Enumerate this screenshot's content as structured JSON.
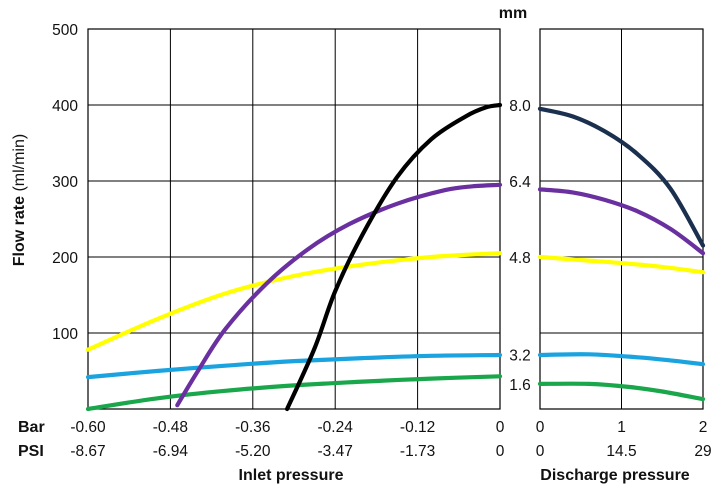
{
  "chart_data": {
    "type": "line",
    "ylabel_bold": "Flow rate",
    "ylabel_unit": " (ml/min)",
    "ylim": [
      0,
      500
    ],
    "yticks": [
      {
        "value": 500,
        "label": "500"
      },
      {
        "value": 400,
        "label": "400"
      },
      {
        "value": 300,
        "label": "300"
      },
      {
        "value": 200,
        "label": "200"
      },
      {
        "value": 100,
        "label": "100"
      }
    ],
    "grid": true,
    "inlet": {
      "title": "Inlet pressure",
      "xlim": [
        -0.6,
        0
      ],
      "gridlines": [
        -0.48,
        -0.36,
        -0.24,
        -0.12
      ],
      "row_labels": {
        "bar": "Bar",
        "psi": "PSI"
      },
      "ticks": [
        {
          "bar": -0.6,
          "bar_label": "-0.60",
          "psi_label": "-8.67"
        },
        {
          "bar": -0.48,
          "bar_label": "-0.48",
          "psi_label": "-6.94"
        },
        {
          "bar": -0.36,
          "bar_label": "-0.36",
          "psi_label": "-5.20"
        },
        {
          "bar": -0.24,
          "bar_label": "-0.24",
          "psi_label": "-3.47"
        },
        {
          "bar": -0.12,
          "bar_label": "-0.12",
          "psi_label": "-1.73"
        },
        {
          "bar": 0,
          "bar_label": "0",
          "psi_label": "0"
        }
      ]
    },
    "discharge": {
      "title": "Discharge pressure",
      "xlim": [
        0,
        2
      ],
      "gridlines": [
        1
      ],
      "ticks": [
        {
          "bar": 0,
          "bar_label": "0",
          "psi_label": "0"
        },
        {
          "bar": 1,
          "bar_label": "1",
          "psi_label": "14.5"
        },
        {
          "bar": 2,
          "bar_label": "2",
          "psi_label": "29"
        }
      ]
    },
    "size_unit": "mm",
    "series": [
      {
        "name": "8.0",
        "color": "#000000",
        "label_y": 400,
        "inlet": [
          [
            -0.31,
            0
          ],
          [
            -0.27,
            80
          ],
          [
            -0.24,
            155
          ],
          [
            -0.2,
            230
          ],
          [
            -0.15,
            305
          ],
          [
            -0.1,
            355
          ],
          [
            -0.05,
            385
          ],
          [
            -0.02,
            397
          ],
          [
            0,
            400
          ]
        ]
      },
      {
        "name": "8.0",
        "color": "#1b2f4f",
        "label_y": 400,
        "discharge": [
          [
            0,
            395
          ],
          [
            0.4,
            385
          ],
          [
            0.8,
            365
          ],
          [
            1.2,
            335
          ],
          [
            1.6,
            290
          ],
          [
            2,
            215
          ]
        ]
      },
      {
        "name": "6.4",
        "color": "#6a30a0",
        "label_y": 300,
        "inlet": [
          [
            -0.47,
            5
          ],
          [
            -0.44,
            50
          ],
          [
            -0.4,
            105
          ],
          [
            -0.34,
            165
          ],
          [
            -0.28,
            210
          ],
          [
            -0.22,
            243
          ],
          [
            -0.15,
            270
          ],
          [
            -0.08,
            288
          ],
          [
            -0.04,
            293
          ],
          [
            0,
            295
          ]
        ],
        "discharge": [
          [
            0,
            289
          ],
          [
            0.4,
            285
          ],
          [
            0.8,
            275
          ],
          [
            1.2,
            260
          ],
          [
            1.6,
            237
          ],
          [
            2,
            205
          ]
        ]
      },
      {
        "name": "4.8",
        "color": "#ffff00",
        "label_y": 200,
        "inlet": [
          [
            -0.6,
            78
          ],
          [
            -0.5,
            118
          ],
          [
            -0.4,
            152
          ],
          [
            -0.3,
            175
          ],
          [
            -0.2,
            190
          ],
          [
            -0.1,
            200
          ],
          [
            0,
            205
          ]
        ],
        "discharge": [
          [
            0,
            200
          ],
          [
            0.5,
            196
          ],
          [
            1,
            192
          ],
          [
            1.5,
            187
          ],
          [
            2,
            180
          ]
        ]
      },
      {
        "name": "3.2",
        "color": "#1aa3df",
        "label_y": 72,
        "inlet": [
          [
            -0.6,
            42
          ],
          [
            -0.5,
            50
          ],
          [
            -0.4,
            57
          ],
          [
            -0.3,
            63
          ],
          [
            -0.2,
            67
          ],
          [
            -0.1,
            70
          ],
          [
            0,
            71
          ]
        ],
        "discharge": [
          [
            0,
            71
          ],
          [
            0.6,
            72
          ],
          [
            1.2,
            68
          ],
          [
            1.6,
            64
          ],
          [
            2,
            59
          ]
        ]
      },
      {
        "name": "1.6",
        "color": "#1aa64a",
        "label_y": 33,
        "inlet": [
          [
            -0.6,
            0
          ],
          [
            -0.5,
            14
          ],
          [
            -0.4,
            24
          ],
          [
            -0.3,
            31
          ],
          [
            -0.2,
            36
          ],
          [
            -0.1,
            40
          ],
          [
            0,
            43
          ]
        ],
        "discharge": [
          [
            0,
            33
          ],
          [
            0.6,
            33
          ],
          [
            1.1,
            29
          ],
          [
            1.5,
            23
          ],
          [
            2,
            13
          ]
        ]
      }
    ]
  }
}
